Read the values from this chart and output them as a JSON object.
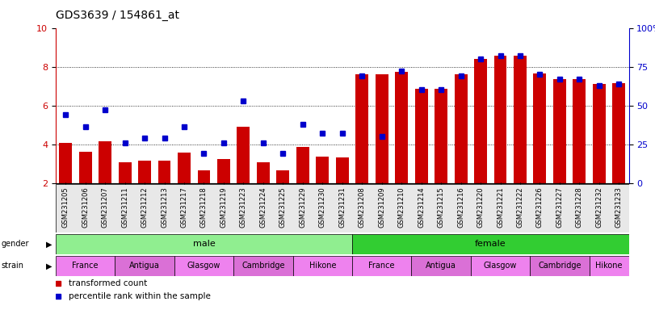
{
  "title": "GDS3639 / 154861_at",
  "samples": [
    "GSM231205",
    "GSM231206",
    "GSM231207",
    "GSM231211",
    "GSM231212",
    "GSM231213",
    "GSM231217",
    "GSM231218",
    "GSM231219",
    "GSM231223",
    "GSM231224",
    "GSM231225",
    "GSM231229",
    "GSM231230",
    "GSM231231",
    "GSM231208",
    "GSM231209",
    "GSM231210",
    "GSM231214",
    "GSM231215",
    "GSM231216",
    "GSM231220",
    "GSM231221",
    "GSM231222",
    "GSM231226",
    "GSM231227",
    "GSM231228",
    "GSM231232",
    "GSM231233"
  ],
  "bar_values": [
    4.05,
    3.6,
    4.15,
    3.05,
    3.15,
    3.15,
    3.55,
    2.65,
    3.25,
    4.9,
    3.05,
    2.65,
    3.85,
    3.35,
    3.3,
    7.6,
    7.6,
    7.75,
    6.85,
    6.85,
    7.6,
    8.4,
    8.55,
    8.55,
    7.65,
    7.35,
    7.35,
    7.1,
    7.15
  ],
  "dot_values_pct": [
    44,
    36,
    47,
    26,
    29,
    29,
    36,
    19,
    26,
    53,
    26,
    19,
    38,
    32,
    32,
    69,
    30,
    72,
    60,
    60,
    69,
    80,
    82,
    82,
    70,
    67,
    67,
    63,
    64
  ],
  "ylim_left": [
    2,
    10
  ],
  "ylim_right": [
    0,
    100
  ],
  "left_ticks": [
    2,
    4,
    6,
    8,
    10
  ],
  "right_ticks": [
    0,
    25,
    50,
    75,
    100
  ],
  "right_tick_labels": [
    "0",
    "25",
    "50",
    "75",
    "100%"
  ],
  "bar_color": "#cc0000",
  "dot_color": "#0000cc",
  "grid_values": [
    4,
    6,
    8
  ],
  "n_male": 15,
  "gender_groups": [
    {
      "label": "male",
      "start": 0,
      "end": 15,
      "color": "#90ee90"
    },
    {
      "label": "female",
      "start": 15,
      "end": 29,
      "color": "#32cd32"
    }
  ],
  "strain_colors": {
    "France": "#ee82ee",
    "Antigua": "#da70d6",
    "Glasgow": "#ee82ee",
    "Cambridge": "#da70d6",
    "Hikone": "#ee82ee"
  },
  "strain_groups": [
    {
      "label": "France",
      "start": 0,
      "end": 3
    },
    {
      "label": "Antigua",
      "start": 3,
      "end": 6
    },
    {
      "label": "Glasgow",
      "start": 6,
      "end": 9
    },
    {
      "label": "Cambridge",
      "start": 9,
      "end": 12
    },
    {
      "label": "Hikone",
      "start": 12,
      "end": 15
    },
    {
      "label": "France",
      "start": 15,
      "end": 18
    },
    {
      "label": "Antigua",
      "start": 18,
      "end": 21
    },
    {
      "label": "Glasgow",
      "start": 21,
      "end": 24
    },
    {
      "label": "Cambridge",
      "start": 24,
      "end": 27
    },
    {
      "label": "Hikone",
      "start": 27,
      "end": 29
    }
  ],
  "legend_items": [
    {
      "label": "transformed count",
      "color": "#cc0000"
    },
    {
      "label": "percentile rank within the sample",
      "color": "#0000cc"
    }
  ],
  "title_fontsize": 10,
  "tick_fontsize": 8,
  "label_fontsize": 7,
  "sample_fontsize": 6
}
